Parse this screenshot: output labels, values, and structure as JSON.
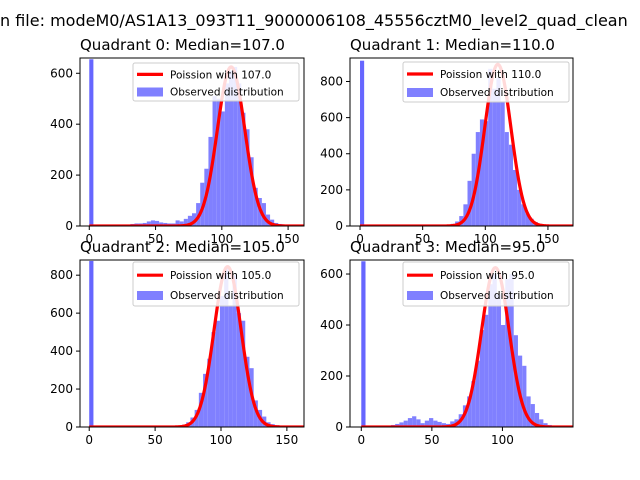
{
  "figure_title": "n file: modeM0/AS1A13_093T11_9000006108_45556cztM0_level2_quad_clean",
  "colors": {
    "fit": "#ff0000",
    "hist": "#8080ff",
    "hist_spike": "#6666ff"
  },
  "chart_data": [
    {
      "type": "bar",
      "title": "Quadrant 0: Median=107.0",
      "xlim": [
        -7,
        162
      ],
      "ylim": [
        0,
        660
      ],
      "xticks": [
        0,
        50,
        100,
        150
      ],
      "yticks": [
        0,
        200,
        400,
        600
      ],
      "bin_width": 3.1,
      "legend": {
        "placement": "center-right",
        "entries": [
          "Poission with 107.0",
          "Observed distribution"
        ]
      },
      "fit": {
        "name": "Poission with 107.0",
        "mean": 107.0,
        "peak": 625
      },
      "hist": {
        "name": "Observed distribution",
        "bins": [
          0,
          3.1,
          6.2,
          9.3,
          12.4,
          15.5,
          18.6,
          21.7,
          24.8,
          27.9,
          31,
          34.1,
          37.2,
          40.3,
          43.4,
          46.5,
          49.6,
          52.7,
          55.8,
          58.9,
          62,
          65.1,
          68.2,
          71.3,
          74.4,
          77.5,
          80.6,
          83.7,
          86.8,
          89.9,
          93,
          96.1,
          99.2,
          102.3,
          105.4,
          108.5,
          111.6,
          114.7,
          117.8,
          120.9,
          124,
          127.1,
          130.2,
          133.3,
          136.4,
          139.5,
          142.6,
          145.7,
          148.8,
          151.9
        ],
        "counts": [
          655,
          4,
          2,
          2,
          2,
          3,
          4,
          3,
          4,
          5,
          8,
          10,
          10,
          12,
          18,
          22,
          20,
          14,
          12,
          10,
          10,
          22,
          18,
          28,
          40,
          50,
          90,
          170,
          225,
          350,
          510,
          500,
          450,
          560,
          610,
          625,
          560,
          445,
          380,
          270,
          150,
          110,
          90,
          45,
          25,
          12,
          8,
          5,
          3,
          2
        ]
      }
    },
    {
      "type": "bar",
      "title": "Quadrant 1: Median=110.0",
      "xlim": [
        -8,
        170
      ],
      "ylim": [
        0,
        930
      ],
      "xticks": [
        0,
        50,
        100,
        150
      ],
      "yticks": [
        0,
        200,
        400,
        600,
        800
      ],
      "bin_width": 3.3,
      "legend": {
        "placement": "top-right",
        "entries": [
          "Poission with 110.0",
          "Observed distribution"
        ]
      },
      "fit": {
        "name": "Poission with 110.0",
        "mean": 110.0,
        "peak": 895
      },
      "hist": {
        "name": "Observed distribution",
        "bins": [
          0,
          66,
          69.3,
          72.6,
          75.9,
          79.2,
          82.5,
          85.8,
          89.1,
          92.4,
          95.7,
          99,
          102.3,
          105.6,
          108.9,
          112.2,
          115.5,
          118.8,
          122.1,
          125.4,
          128.7,
          132,
          135.3,
          138.6,
          141.9,
          145.2,
          148.5,
          151.8,
          155.1,
          158.4
        ],
        "counts": [
          915,
          4,
          8,
          12,
          25,
          55,
          120,
          250,
          400,
          520,
          590,
          580,
          870,
          760,
          820,
          690,
          520,
          450,
          310,
          200,
          120,
          70,
          40,
          22,
          12,
          8,
          5,
          3,
          2,
          1
        ]
      }
    },
    {
      "type": "bar",
      "title": "Quadrant 2: Median=105.0",
      "xlim": [
        -7,
        163
      ],
      "ylim": [
        0,
        880
      ],
      "xticks": [
        0,
        50,
        100,
        150
      ],
      "yticks": [
        0,
        200,
        400,
        600,
        800
      ],
      "bin_width": 3.2,
      "legend": {
        "placement": "top-right",
        "entries": [
          "Poission with 105.0",
          "Observed distribution"
        ]
      },
      "fit": {
        "name": "Poission with 105.0",
        "mean": 105.0,
        "peak": 845
      },
      "hist": {
        "name": "Observed distribution",
        "bins": [
          0,
          64,
          67.2,
          70.4,
          73.6,
          76.8,
          80,
          83.2,
          86.4,
          89.6,
          92.8,
          96,
          99.2,
          102.4,
          105.6,
          108.8,
          112,
          115.2,
          118.4,
          121.6,
          124.8,
          128,
          131.2,
          134.4,
          137.6,
          140.8,
          144,
          147.2
        ],
        "counts": [
          875,
          4,
          8,
          12,
          25,
          50,
          90,
          180,
          280,
          360,
          500,
          560,
          690,
          840,
          640,
          800,
          600,
          560,
          370,
          310,
          140,
          90,
          55,
          25,
          15,
          10,
          5,
          3
        ]
      }
    },
    {
      "type": "bar",
      "title": "Quadrant 3: Median=95.0",
      "xlim": [
        -8,
        150
      ],
      "ylim": [
        0,
        655
      ],
      "xticks": [
        0,
        50,
        100
      ],
      "yticks": [
        0,
        200,
        400,
        600
      ],
      "bin_width": 3.0,
      "legend": {
        "placement": "top-right",
        "entries": [
          "Poission with 95.0",
          "Observed distribution"
        ]
      },
      "fit": {
        "name": "Poission with 95.0",
        "mean": 95.0,
        "peak": 625
      },
      "hist": {
        "name": "Observed distribution",
        "bins": [
          0,
          15,
          18,
          21,
          24,
          27,
          30,
          33,
          36,
          39,
          42,
          45,
          48,
          51,
          54,
          57,
          60,
          63,
          66,
          69,
          72,
          75,
          78,
          81,
          84,
          87,
          90,
          93,
          96,
          99,
          102,
          105,
          108,
          111,
          114,
          117,
          120,
          123,
          126,
          129,
          132,
          135,
          138
        ],
        "counts": [
          650,
          3,
          5,
          8,
          12,
          18,
          25,
          35,
          42,
          30,
          15,
          25,
          35,
          25,
          20,
          15,
          12,
          22,
          30,
          50,
          85,
          120,
          180,
          260,
          380,
          440,
          560,
          600,
          520,
          400,
          580,
          600,
          360,
          280,
          240,
          120,
          90,
          55,
          30,
          15,
          8,
          4,
          2
        ]
      }
    }
  ]
}
